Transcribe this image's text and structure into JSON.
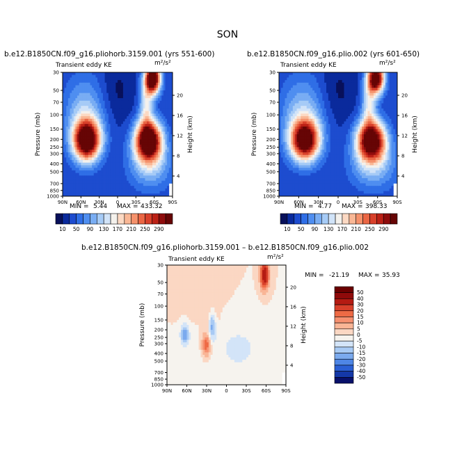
{
  "page": {
    "title": "SON"
  },
  "chart_data": [
    {
      "type": "contour",
      "title": "b.e12.B1850CN.f09_g16.pliohorb.3159.001 (yrs 551-600)",
      "field_label": "Transient eddy KE",
      "units": "m²/s²",
      "xlabel": "",
      "ylabel_left": "Pressure (mb)",
      "ylabel_right": "Height (km)",
      "x_ticks": [
        "90N",
        "60N",
        "30N",
        "0",
        "30S",
        "60S",
        "90S"
      ],
      "y_ticks": [
        "30",
        "50",
        "70",
        "100",
        "150",
        "200",
        "250",
        "300",
        "400",
        "500",
        "700",
        "850",
        "1000"
      ],
      "height_ticks": [
        "20",
        "16",
        "12",
        "8",
        "4"
      ],
      "min_label": "MIN =",
      "min": "5.44",
      "max_label": "MAX =",
      "max": "433.32",
      "colorbar": {
        "levels": [
          "10",
          "50",
          "90",
          "130",
          "170",
          "210",
          "250",
          "290"
        ],
        "colors": [
          "#08105a",
          "#0a2a9c",
          "#1d4ccf",
          "#2f6ee6",
          "#4f8ef0",
          "#79adf3",
          "#a6cbf6",
          "#d1e3f8",
          "#f4f1ec",
          "#fcd9c3",
          "#f9b795",
          "#f5916b",
          "#ea6644",
          "#d8402a",
          "#bb2116",
          "#8e0c0c",
          "#660505"
        ]
      }
    },
    {
      "type": "contour",
      "title": "b.e12.B1850CN.f09_g16.plio.002 (yrs 601-650)",
      "field_label": "Transient eddy KE",
      "units": "m²/s²",
      "xlabel": "",
      "ylabel_left": "Pressure (mb)",
      "ylabel_right": "Height (km)",
      "x_ticks": [
        "90N",
        "60N",
        "30N",
        "0",
        "30S",
        "60S",
        "90S"
      ],
      "y_ticks": [
        "30",
        "50",
        "70",
        "100",
        "150",
        "200",
        "250",
        "300",
        "400",
        "500",
        "700",
        "850",
        "1000"
      ],
      "height_ticks": [
        "20",
        "16",
        "12",
        "8",
        "4"
      ],
      "min_label": "MIN =",
      "min": "4.77",
      "max_label": "MAX =",
      "max": "398.33",
      "colorbar": {
        "levels": [
          "10",
          "50",
          "90",
          "130",
          "170",
          "210",
          "250",
          "290"
        ],
        "colors": [
          "#08105a",
          "#0a2a9c",
          "#1d4ccf",
          "#2f6ee6",
          "#4f8ef0",
          "#79adf3",
          "#a6cbf6",
          "#d1e3f8",
          "#f4f1ec",
          "#fcd9c3",
          "#f9b795",
          "#f5916b",
          "#ea6644",
          "#d8402a",
          "#bb2116",
          "#8e0c0c",
          "#660505"
        ]
      }
    },
    {
      "type": "contour",
      "title": "b.e12.B1850CN.f09_g16.pliohorb.3159.001 – b.e12.B1850CN.f09_g16.plio.002",
      "field_label": "Transient eddy KE",
      "units": "m²/s²",
      "xlabel": "",
      "ylabel_left": "Pressure (mb)",
      "ylabel_right": "Height (km)",
      "x_ticks": [
        "90N",
        "60N",
        "30N",
        "0",
        "30S",
        "60S",
        "90S"
      ],
      "y_ticks": [
        "30",
        "50",
        "70",
        "100",
        "150",
        "200",
        "250",
        "300",
        "400",
        "500",
        "700",
        "850",
        "1000"
      ],
      "height_ticks": [
        "20",
        "16",
        "12",
        "8",
        "4"
      ],
      "min_label": "MIN =",
      "min": "-21.19",
      "max_label": "MAX =",
      "max": "35.93",
      "colorbar": {
        "levels": [
          "50",
          "40",
          "30",
          "20",
          "15",
          "10",
          "5",
          "0",
          "-5",
          "-10",
          "-15",
          "-20",
          "-30",
          "-40",
          "-50"
        ],
        "colors": [
          "#6b0000",
          "#8f0a0a",
          "#b51b12",
          "#d8402a",
          "#ee6a45",
          "#f69070",
          "#f9b596",
          "#fbd7c3",
          "#f6f3ee",
          "#d3e4f8",
          "#a8caf4",
          "#7baaee",
          "#4e86e6",
          "#2a5fd4",
          "#1438a8",
          "#08106a"
        ]
      }
    }
  ]
}
